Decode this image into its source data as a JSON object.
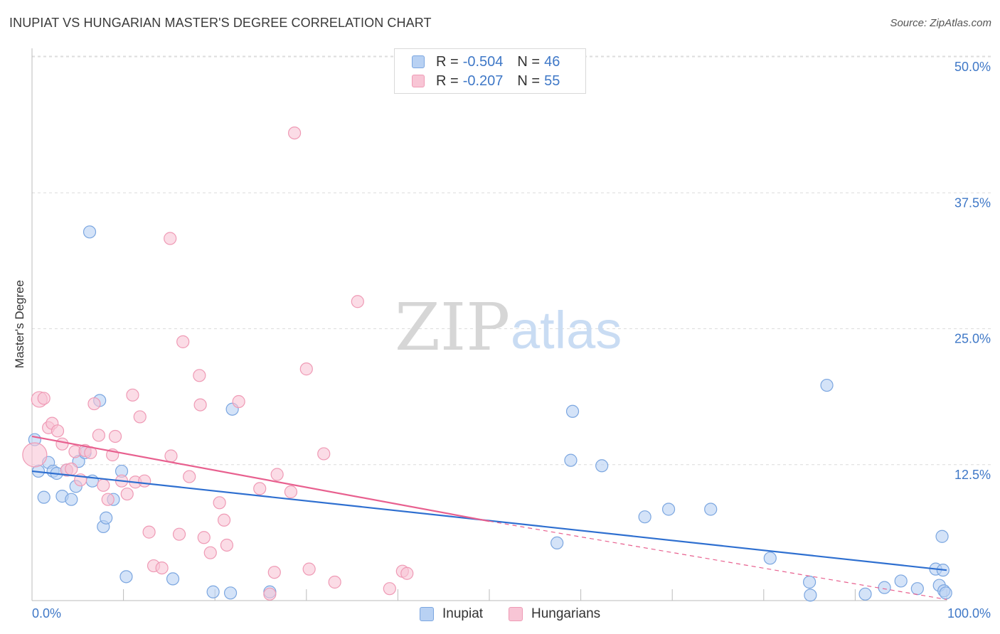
{
  "title": "INUPIAT VS HUNGARIAN MASTER'S DEGREE CORRELATION CHART",
  "source": "Source: ZipAtlas.com",
  "watermark": {
    "zip": "ZIP",
    "atlas": "atlas"
  },
  "legend_stats": [
    {
      "r_label": "R =",
      "r_value": "-0.504",
      "n_label": "N =",
      "n_value": "46"
    },
    {
      "r_label": "R =",
      "r_value": "-0.207",
      "n_label": "N =",
      "n_value": "55"
    }
  ],
  "bottom_legend": [
    "Inupiat",
    "Hungarians"
  ],
  "colors": {
    "inupiat_fill": "#b8d1f3",
    "inupiat_stroke": "#7ba6e0",
    "inupiat_line": "#2e6fd0",
    "hungarian_fill": "#f8c5d5",
    "hungarian_stroke": "#ef9ab5",
    "hungarian_line": "#e8608f",
    "tick_label": "#3f78c7",
    "grid": "#dcdcdc"
  },
  "chart_data": {
    "type": "scatter",
    "xlabel": "",
    "ylabel": "Master's Degree",
    "xlim": [
      0,
      100
    ],
    "ylim": [
      0,
      50
    ],
    "x_tick_labels": [
      "0.0%",
      "100.0%"
    ],
    "y_ticks": [
      12.5,
      25.0,
      37.5,
      50.0
    ],
    "y_tick_labels": [
      "12.5%",
      "25.0%",
      "37.5%",
      "50.0%"
    ],
    "grid": true,
    "legend_position": "top-center",
    "series": [
      {
        "name": "Inupiat",
        "points": [
          [
            0.3,
            14.8
          ],
          [
            0.7,
            11.9
          ],
          [
            1.3,
            9.5
          ],
          [
            1.8,
            12.7
          ],
          [
            2.3,
            11.9
          ],
          [
            2.7,
            11.7
          ],
          [
            3.3,
            9.6
          ],
          [
            3.8,
            12.0
          ],
          [
            4.3,
            9.3
          ],
          [
            4.8,
            10.5
          ],
          [
            5.1,
            12.8
          ],
          [
            5.8,
            13.6
          ],
          [
            6.3,
            33.9
          ],
          [
            6.6,
            11.0
          ],
          [
            7.4,
            18.4
          ],
          [
            7.8,
            6.8
          ],
          [
            8.1,
            7.6
          ],
          [
            8.9,
            9.3
          ],
          [
            9.8,
            11.9
          ],
          [
            10.3,
            2.2
          ],
          [
            15.4,
            2.0
          ],
          [
            19.8,
            0.8
          ],
          [
            21.7,
            0.7
          ],
          [
            21.9,
            17.6
          ],
          [
            26.0,
            0.8
          ],
          [
            57.4,
            5.3
          ],
          [
            59.1,
            17.4
          ],
          [
            58.9,
            12.9
          ],
          [
            62.3,
            12.4
          ],
          [
            67.0,
            7.7
          ],
          [
            69.6,
            8.4
          ],
          [
            74.2,
            8.4
          ],
          [
            80.7,
            3.9
          ],
          [
            85.0,
            1.7
          ],
          [
            85.1,
            0.5
          ],
          [
            86.9,
            19.8
          ],
          [
            91.1,
            0.6
          ],
          [
            93.2,
            1.2
          ],
          [
            95.0,
            1.8
          ],
          [
            96.8,
            1.1
          ],
          [
            98.8,
            2.9
          ],
          [
            99.2,
            1.4
          ],
          [
            99.5,
            5.9
          ],
          [
            99.7,
            0.9
          ],
          [
            99.9,
            0.7
          ],
          [
            99.6,
            2.8
          ]
        ],
        "trend": [
          [
            0,
            11.9
          ],
          [
            100,
            2.8
          ]
        ]
      },
      {
        "name": "Hungarians",
        "points": [
          [
            0.3,
            13.4
          ],
          [
            0.8,
            18.5
          ],
          [
            1.3,
            18.6
          ],
          [
            1.8,
            15.9
          ],
          [
            2.2,
            16.3
          ],
          [
            2.8,
            15.6
          ],
          [
            3.3,
            14.4
          ],
          [
            3.8,
            12.0
          ],
          [
            4.3,
            12.1
          ],
          [
            4.7,
            13.7
          ],
          [
            5.3,
            11.1
          ],
          [
            5.8,
            13.8
          ],
          [
            6.4,
            13.6
          ],
          [
            6.8,
            18.1
          ],
          [
            7.3,
            15.2
          ],
          [
            7.8,
            10.6
          ],
          [
            8.3,
            9.3
          ],
          [
            8.8,
            13.4
          ],
          [
            9.1,
            15.1
          ],
          [
            9.8,
            11.0
          ],
          [
            10.4,
            9.8
          ],
          [
            11.0,
            18.9
          ],
          [
            11.3,
            10.9
          ],
          [
            11.8,
            16.9
          ],
          [
            12.3,
            11.0
          ],
          [
            12.8,
            6.3
          ],
          [
            13.3,
            3.2
          ],
          [
            14.2,
            3.0
          ],
          [
            15.1,
            33.3
          ],
          [
            15.2,
            13.3
          ],
          [
            16.1,
            6.1
          ],
          [
            16.5,
            23.8
          ],
          [
            17.2,
            11.4
          ],
          [
            18.3,
            20.7
          ],
          [
            18.4,
            18.0
          ],
          [
            18.8,
            5.8
          ],
          [
            19.5,
            4.4
          ],
          [
            20.5,
            9.0
          ],
          [
            21.0,
            7.4
          ],
          [
            21.3,
            5.1
          ],
          [
            22.6,
            18.3
          ],
          [
            24.9,
            10.3
          ],
          [
            26.0,
            0.6
          ],
          [
            26.5,
            2.6
          ],
          [
            26.8,
            11.6
          ],
          [
            28.3,
            10.0
          ],
          [
            28.7,
            43.0
          ],
          [
            30.0,
            21.3
          ],
          [
            30.3,
            2.9
          ],
          [
            31.9,
            13.5
          ],
          [
            33.1,
            1.7
          ],
          [
            35.6,
            27.5
          ],
          [
            39.1,
            1.1
          ],
          [
            40.5,
            2.7
          ],
          [
            41.0,
            2.5
          ]
        ],
        "trend": [
          [
            0,
            15.1
          ],
          [
            50,
            7.3
          ]
        ],
        "trend_dashed": [
          [
            50,
            7.3
          ],
          [
            100,
            0.1
          ]
        ]
      }
    ]
  }
}
